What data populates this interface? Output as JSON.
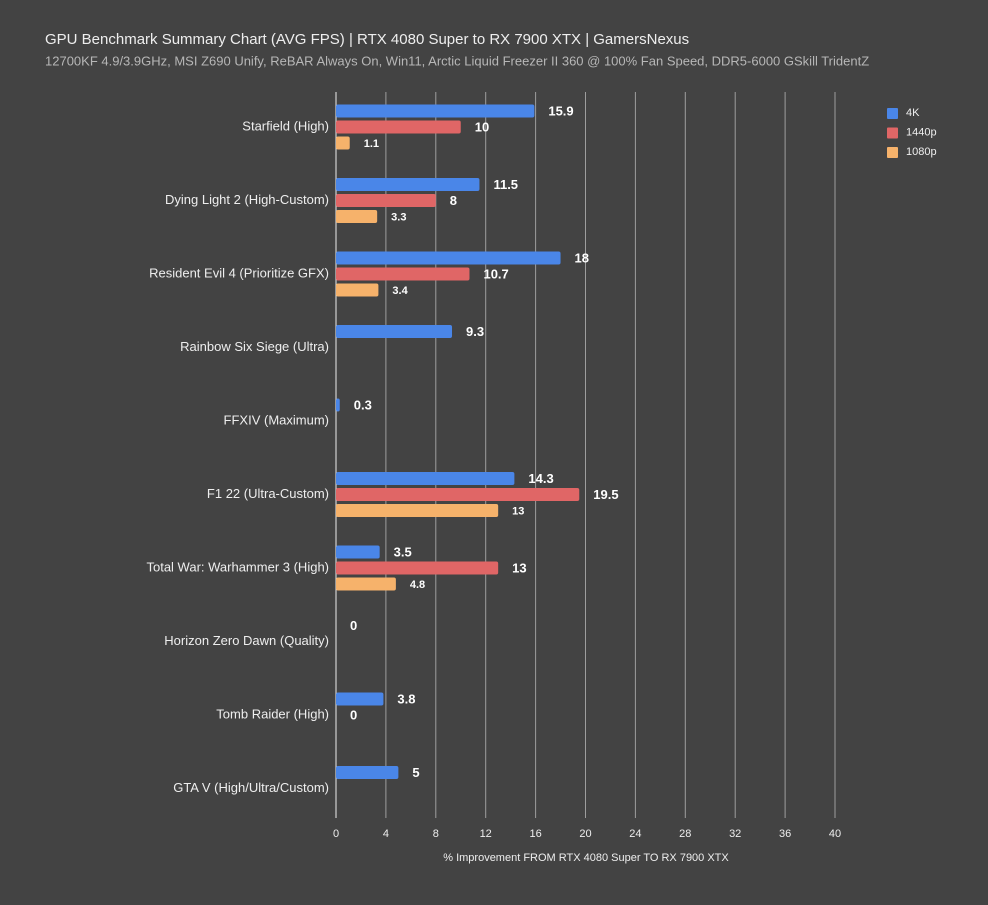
{
  "chart_data": {
    "type": "bar",
    "orientation": "horizontal",
    "title": "GPU Benchmark Summary Chart (AVG FPS) | RTX 4080 Super to RX 7900 XTX | GamersNexus",
    "subtitle": "12700KF 4.9/3.9GHz, MSI Z690 Unify, ReBAR Always On, Win11, Arctic Liquid Freezer II 360 @ 100% Fan Speed, DDR5-6000 GSkill TridentZ",
    "x_label": "% Improvement FROM RTX 4080 Super TO RX 7900 XTX",
    "categories": [
      "Starfield (High)",
      "Dying Light 2 (High-Custom)",
      "Resident Evil 4 (Prioritize GFX)",
      "Rainbow Six Siege (Ultra)",
      "FFXIV (Maximum)",
      "F1 22 (Ultra-Custom)",
      "Total War: Warhammer 3 (High)",
      "Horizon Zero Dawn (Quality)",
      "Tomb Raider (High)",
      "GTA V (High/Ultra/Custom)"
    ],
    "series": [
      {
        "name": "4K",
        "color": "#4a86e8",
        "values": [
          15.9,
          11.5,
          18,
          9.3,
          0.3,
          14.3,
          3.5,
          0,
          3.8,
          5
        ]
      },
      {
        "name": "1440p",
        "color": "#e06666",
        "values": [
          10,
          8,
          10.7,
          null,
          null,
          19.5,
          13,
          null,
          0,
          null
        ]
      },
      {
        "name": "1080p",
        "color": "#f6b26b",
        "values": [
          1.1,
          3.3,
          3.4,
          null,
          null,
          13,
          4.8,
          null,
          null,
          null
        ]
      }
    ],
    "xlim": [
      0,
      40
    ],
    "xticks": [
      0,
      4,
      8,
      12,
      16,
      20,
      24,
      28,
      32,
      36,
      40
    ],
    "grid": true,
    "legend": "top-right"
  }
}
